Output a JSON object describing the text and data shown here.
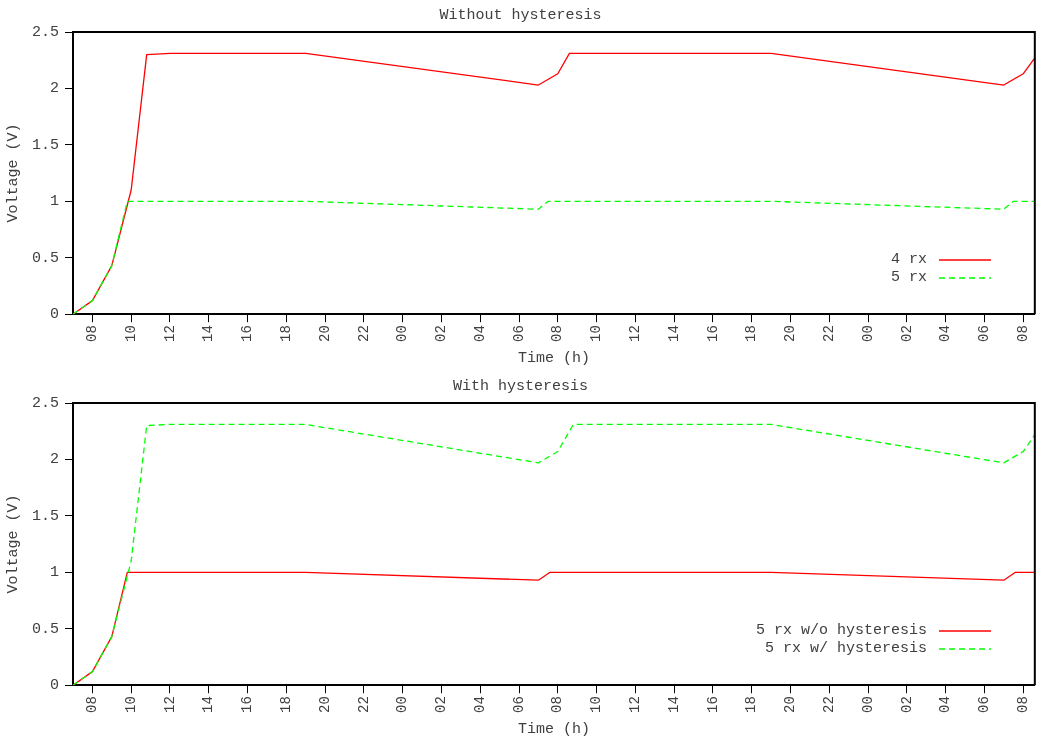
{
  "chart_data": [
    {
      "type": "line",
      "title": "Without hysteresis",
      "xlabel": "Time (h)",
      "ylabel": "Voltage (V)",
      "xlim": [
        7,
        56.6
      ],
      "ylim": [
        0,
        2.5
      ],
      "xticks": [
        {
          "value": 8,
          "label": "08"
        },
        {
          "value": 10,
          "label": "10"
        },
        {
          "value": 12,
          "label": "12"
        },
        {
          "value": 14,
          "label": "14"
        },
        {
          "value": 16,
          "label": "16"
        },
        {
          "value": 18,
          "label": "18"
        },
        {
          "value": 20,
          "label": "20"
        },
        {
          "value": 22,
          "label": "22"
        },
        {
          "value": 24,
          "label": "00"
        },
        {
          "value": 26,
          "label": "02"
        },
        {
          "value": 28,
          "label": "04"
        },
        {
          "value": 30,
          "label": "06"
        },
        {
          "value": 32,
          "label": "08"
        },
        {
          "value": 34,
          "label": "10"
        },
        {
          "value": 36,
          "label": "12"
        },
        {
          "value": 38,
          "label": "14"
        },
        {
          "value": 40,
          "label": "16"
        },
        {
          "value": 42,
          "label": "18"
        },
        {
          "value": 44,
          "label": "20"
        },
        {
          "value": 46,
          "label": "22"
        },
        {
          "value": 48,
          "label": "00"
        },
        {
          "value": 50,
          "label": "02"
        },
        {
          "value": 52,
          "label": "04"
        },
        {
          "value": 54,
          "label": "06"
        },
        {
          "value": 56,
          "label": "08"
        }
      ],
      "yticks": [
        0,
        0.5,
        1,
        1.5,
        2,
        2.5
      ],
      "grid": false,
      "legend": "bottom right",
      "marker": "none",
      "series": [
        {
          "name": "4 rx",
          "color": "#ff0000",
          "line_style": "solid",
          "x": [
            7,
            8,
            9,
            10,
            10.8,
            12,
            19,
            31,
            32,
            32.6,
            43,
            55,
            56,
            56.6
          ],
          "values": [
            0,
            0.12,
            0.43,
            1.1,
            2.3,
            2.31,
            2.31,
            2.03,
            2.13,
            2.31,
            2.31,
            2.03,
            2.13,
            2.27
          ]
        },
        {
          "name": "5 rx",
          "color": "#00ff00",
          "line_style": "dashed",
          "x": [
            7,
            8,
            9,
            9.8,
            19,
            31,
            31.5,
            43,
            55,
            55.5,
            56.6
          ],
          "values": [
            0,
            0.12,
            0.43,
            1.0,
            1.0,
            0.93,
            1.0,
            1.0,
            0.93,
            1.0,
            1.0
          ]
        }
      ]
    },
    {
      "type": "line",
      "title": "With hysteresis",
      "xlabel": "Time (h)",
      "ylabel": "Voltage (V)",
      "xlim": [
        7,
        56.6
      ],
      "ylim": [
        0,
        2.5
      ],
      "xticks": [
        {
          "value": 8,
          "label": "08"
        },
        {
          "value": 10,
          "label": "10"
        },
        {
          "value": 12,
          "label": "12"
        },
        {
          "value": 14,
          "label": "14"
        },
        {
          "value": 16,
          "label": "16"
        },
        {
          "value": 18,
          "label": "18"
        },
        {
          "value": 20,
          "label": "20"
        },
        {
          "value": 22,
          "label": "22"
        },
        {
          "value": 24,
          "label": "00"
        },
        {
          "value": 26,
          "label": "02"
        },
        {
          "value": 28,
          "label": "04"
        },
        {
          "value": 30,
          "label": "06"
        },
        {
          "value": 32,
          "label": "08"
        },
        {
          "value": 34,
          "label": "10"
        },
        {
          "value": 36,
          "label": "12"
        },
        {
          "value": 38,
          "label": "14"
        },
        {
          "value": 40,
          "label": "16"
        },
        {
          "value": 42,
          "label": "18"
        },
        {
          "value": 44,
          "label": "20"
        },
        {
          "value": 46,
          "label": "22"
        },
        {
          "value": 48,
          "label": "00"
        },
        {
          "value": 50,
          "label": "02"
        },
        {
          "value": 52,
          "label": "04"
        },
        {
          "value": 54,
          "label": "06"
        },
        {
          "value": 56,
          "label": "08"
        }
      ],
      "yticks": [
        0,
        0.5,
        1,
        1.5,
        2,
        2.5
      ],
      "grid": false,
      "legend": "bottom right",
      "marker": "none",
      "series": [
        {
          "name": "5 rx w/o hysteresis",
          "color": "#ff0000",
          "line_style": "solid",
          "x": [
            7,
            8,
            9,
            9.8,
            19,
            31,
            31.6,
            43,
            55,
            55.6,
            56.6
          ],
          "values": [
            0,
            0.12,
            0.43,
            1.0,
            1.0,
            0.93,
            1.0,
            1.0,
            0.93,
            1.0,
            1.0
          ]
        },
        {
          "name": "5 rx w/ hysteresis",
          "color": "#00ff00",
          "line_style": "dashed",
          "x": [
            7,
            8,
            9,
            10,
            10.8,
            12,
            19,
            31,
            32,
            32.8,
            43,
            55,
            56,
            56.6
          ],
          "values": [
            0,
            0.12,
            0.43,
            1.1,
            2.3,
            2.31,
            2.31,
            1.97,
            2.07,
            2.31,
            2.31,
            1.97,
            2.07,
            2.22
          ]
        }
      ]
    }
  ]
}
